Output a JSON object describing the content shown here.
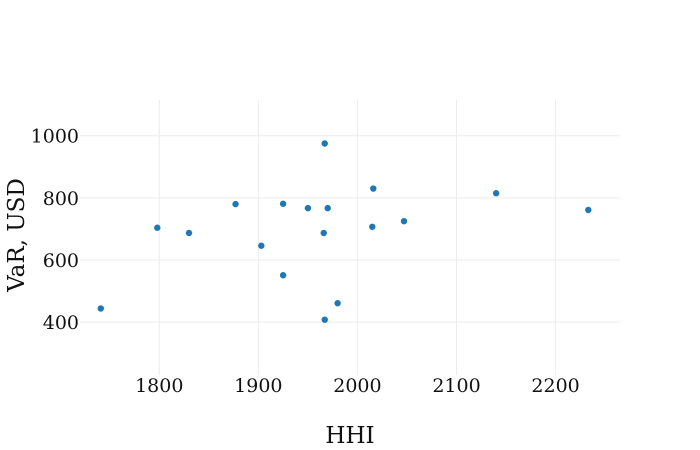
{
  "chart_data": {
    "type": "scatter",
    "title": "",
    "xlabel": "HHI",
    "ylabel": "VaR, USD",
    "xlim": [
      1720,
      2265
    ],
    "ylim": [
      230,
      1115
    ],
    "xticks": [
      1800,
      1900,
      2000,
      2100,
      2200
    ],
    "yticks": [
      400,
      600,
      800,
      1000
    ],
    "grid": true,
    "marker_color": "#1f77b4",
    "points": [
      {
        "x": 1741,
        "y": 444
      },
      {
        "x": 1798,
        "y": 704
      },
      {
        "x": 1830,
        "y": 687
      },
      {
        "x": 1877,
        "y": 780
      },
      {
        "x": 1903,
        "y": 646
      },
      {
        "x": 1925,
        "y": 781
      },
      {
        "x": 1925,
        "y": 551
      },
      {
        "x": 1950,
        "y": 767
      },
      {
        "x": 1966,
        "y": 687
      },
      {
        "x": 1967,
        "y": 975
      },
      {
        "x": 1967,
        "y": 408
      },
      {
        "x": 1970,
        "y": 767
      },
      {
        "x": 1980,
        "y": 461
      },
      {
        "x": 2015,
        "y": 707
      },
      {
        "x": 2016,
        "y": 830
      },
      {
        "x": 2047,
        "y": 725
      },
      {
        "x": 2140,
        "y": 815
      },
      {
        "x": 2233,
        "y": 761
      }
    ]
  }
}
